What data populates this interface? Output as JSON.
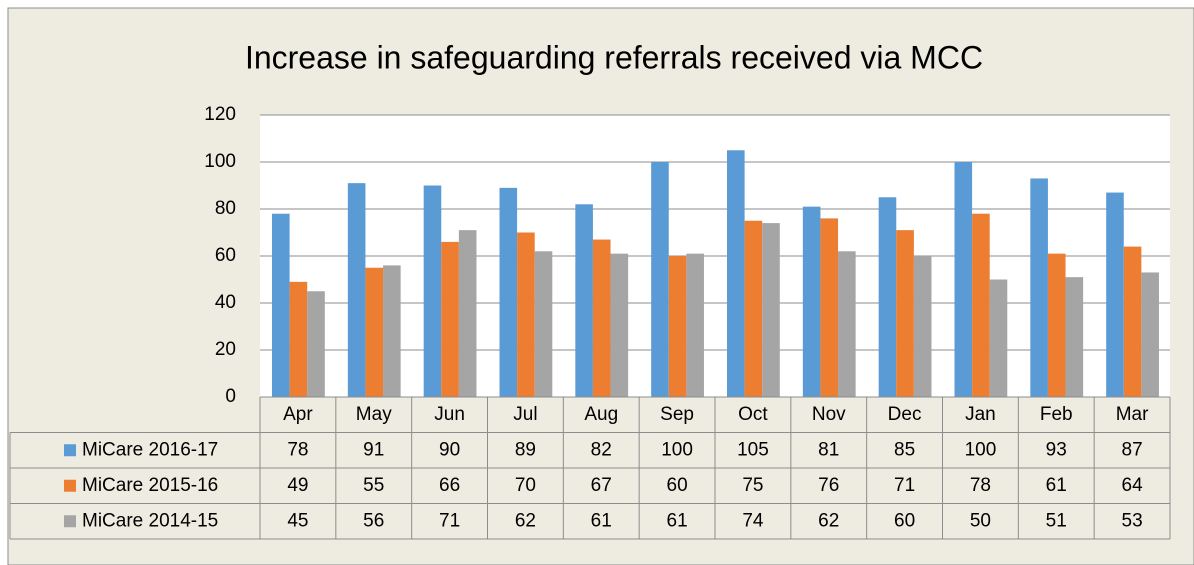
{
  "chart_data": {
    "type": "bar",
    "title": "Increase in safeguarding referrals received via MCC",
    "categories": [
      "Apr",
      "May",
      "Jun",
      "Jul",
      "Aug",
      "Sep",
      "Oct",
      "Nov",
      "Dec",
      "Jan",
      "Feb",
      "Mar"
    ],
    "series": [
      {
        "name": "MiCare 2016-17",
        "color": "#5b9bd5",
        "values": [
          78,
          91,
          90,
          89,
          82,
          100,
          105,
          81,
          85,
          100,
          93,
          87
        ]
      },
      {
        "name": "MiCare 2015-16",
        "color": "#ed7d31",
        "values": [
          49,
          55,
          66,
          70,
          67,
          60,
          75,
          76,
          71,
          78,
          61,
          64
        ]
      },
      {
        "name": "MiCare 2014-15",
        "color": "#a5a5a5",
        "values": [
          45,
          56,
          71,
          62,
          61,
          61,
          74,
          62,
          60,
          50,
          51,
          53
        ]
      }
    ],
    "ylim": [
      0,
      120
    ],
    "yticks": [
      0,
      20,
      40,
      60,
      80,
      100,
      120
    ],
    "grid": true
  }
}
